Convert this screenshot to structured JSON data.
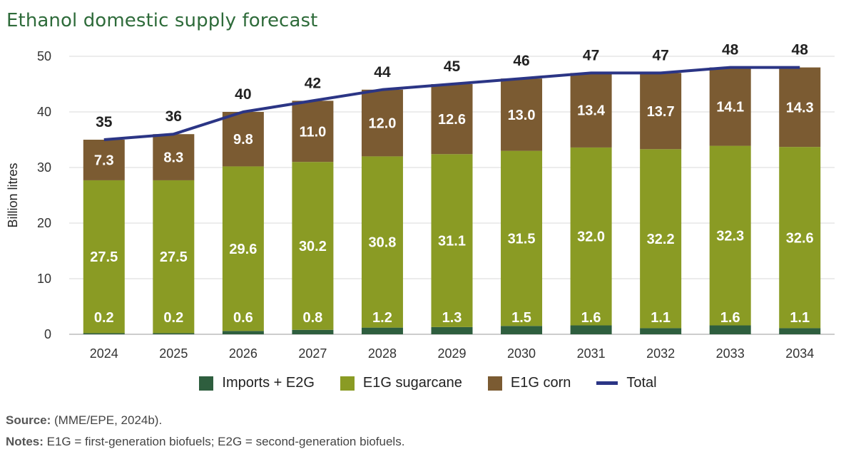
{
  "title": "Ethanol domestic supply forecast",
  "chart_data": {
    "type": "bar",
    "stacked": true,
    "title": "Ethanol domestic supply forecast",
    "xlabel": "",
    "ylabel": "Billion litres",
    "ylim": [
      0,
      50
    ],
    "yticks": [
      0,
      10,
      20,
      30,
      40,
      50
    ],
    "categories": [
      "2024",
      "2025",
      "2026",
      "2027",
      "2028",
      "2029",
      "2030",
      "2031",
      "2032",
      "2033",
      "2034"
    ],
    "series": [
      {
        "name": "Imports + E2G",
        "color": "#2e5e3e",
        "values": [
          0.2,
          0.2,
          0.6,
          0.8,
          1.2,
          1.3,
          1.5,
          1.6,
          1.1,
          1.6,
          1.1
        ]
      },
      {
        "name": "E1G sugarcane",
        "color": "#8a9b24",
        "values": [
          27.5,
          27.5,
          29.6,
          30.2,
          30.8,
          31.1,
          31.5,
          32.0,
          32.2,
          32.3,
          32.6
        ]
      },
      {
        "name": "E1G corn",
        "color": "#7b5b32",
        "values": [
          7.3,
          8.3,
          9.8,
          11.0,
          12.0,
          12.6,
          13.0,
          13.4,
          13.7,
          14.1,
          14.3
        ]
      }
    ],
    "total": {
      "name": "Total",
      "color": "#2b3585",
      "values": [
        35,
        36,
        40,
        42,
        44,
        45,
        46,
        47,
        47,
        48,
        48
      ]
    },
    "legend_position": "bottom"
  },
  "legend": [
    {
      "label": "Imports + E2G",
      "color": "#2e5e3e",
      "kind": "box"
    },
    {
      "label": "E1G sugarcane",
      "color": "#8a9b24",
      "kind": "box"
    },
    {
      "label": "E1G corn",
      "color": "#7b5b32",
      "kind": "box"
    },
    {
      "label": "Total",
      "color": "#2b3585",
      "kind": "line"
    }
  ],
  "source": {
    "label": "Source:",
    "text": " (MME/EPE, 2024b)."
  },
  "notes": {
    "label": "Notes:",
    "text": "  E1G = first-generation biofuels; E2G = second-generation biofuels."
  }
}
